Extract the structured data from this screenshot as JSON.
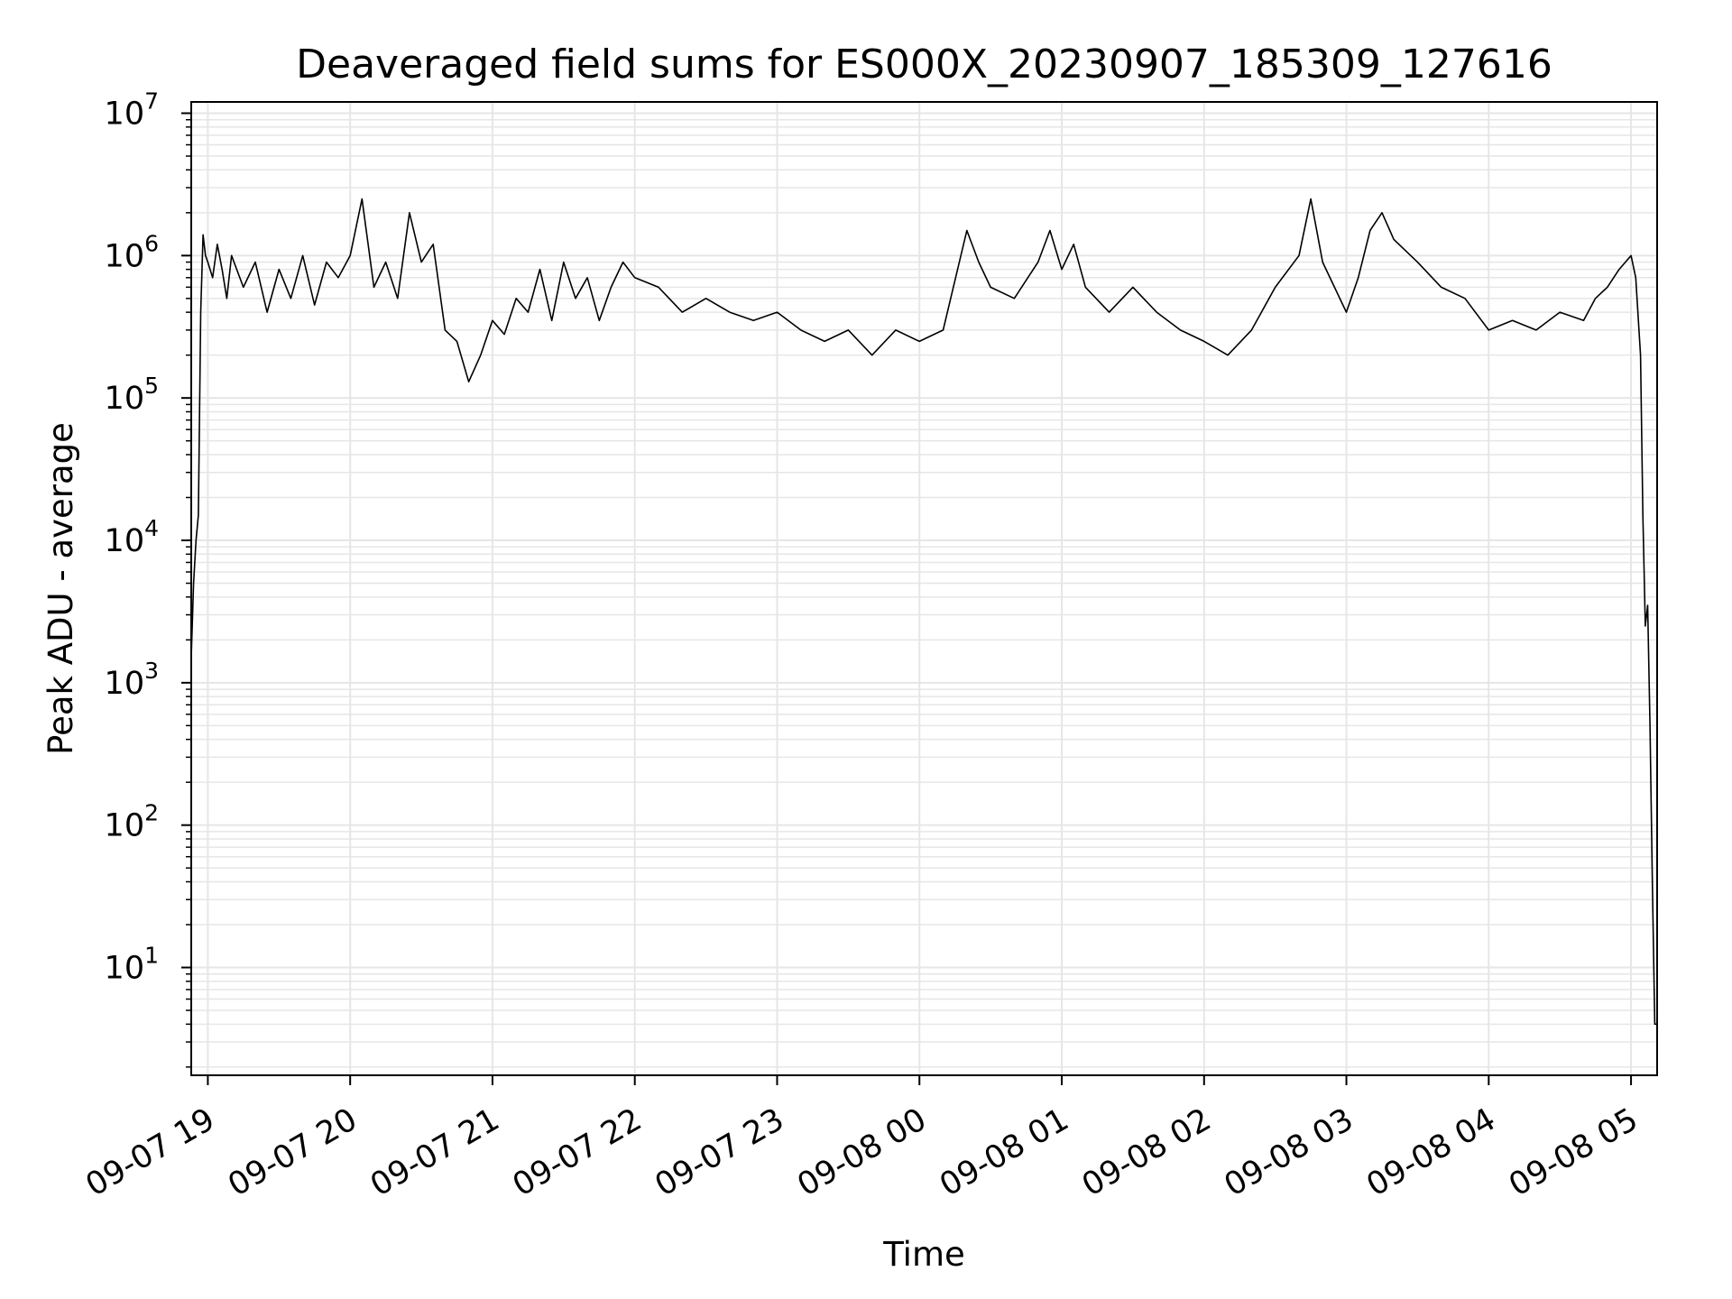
{
  "chart_data": {
    "type": "line",
    "title": "Deaveraged field sums for ES000X_20230907_185309_127616",
    "xlabel": "Time",
    "ylabel": "Peak ADU - average",
    "y_scale": "log",
    "ylim": [
      1.75,
      12000000
    ],
    "xlim": [
      "2023-09-07 18:53",
      "2023-09-08 05:11"
    ],
    "grid": true,
    "grid_minor": true,
    "legend": "none",
    "line_color": "#000000",
    "grid_color": "#e6e6e6",
    "x_ticks": [
      {
        "value": "2023-09-07 19:00",
        "label": "09-07 19"
      },
      {
        "value": "2023-09-07 20:00",
        "label": "09-07 20"
      },
      {
        "value": "2023-09-07 21:00",
        "label": "09-07 21"
      },
      {
        "value": "2023-09-07 22:00",
        "label": "09-07 22"
      },
      {
        "value": "2023-09-07 23:00",
        "label": "09-07 23"
      },
      {
        "value": "2023-09-08 00:00",
        "label": "09-08 00"
      },
      {
        "value": "2023-09-08 01:00",
        "label": "09-08 01"
      },
      {
        "value": "2023-09-08 02:00",
        "label": "09-08 02"
      },
      {
        "value": "2023-09-08 03:00",
        "label": "09-08 03"
      },
      {
        "value": "2023-09-08 04:00",
        "label": "09-08 04"
      },
      {
        "value": "2023-09-08 05:00",
        "label": "09-08 05"
      }
    ],
    "y_ticks": [
      {
        "value": 10,
        "base": "10",
        "exp": "1"
      },
      {
        "value": 100,
        "base": "10",
        "exp": "2"
      },
      {
        "value": 1000,
        "base": "10",
        "exp": "3"
      },
      {
        "value": 10000,
        "base": "10",
        "exp": "4"
      },
      {
        "value": 100000,
        "base": "10",
        "exp": "5"
      },
      {
        "value": 1000000,
        "base": "10",
        "exp": "6"
      },
      {
        "value": 10000000,
        "base": "10",
        "exp": "7"
      }
    ],
    "series": [
      {
        "x": [
          "2023-09-07 18:53",
          "2023-09-07 18:54",
          "2023-09-07 18:55",
          "2023-09-07 18:56",
          "2023-09-07 18:57",
          "2023-09-07 18:58",
          "2023-09-07 18:59",
          "2023-09-07 19:00",
          "2023-09-07 19:02",
          "2023-09-07 19:04",
          "2023-09-07 19:06",
          "2023-09-07 19:08",
          "2023-09-07 19:10",
          "2023-09-07 19:15",
          "2023-09-07 19:20",
          "2023-09-07 19:25",
          "2023-09-07 19:30",
          "2023-09-07 19:35",
          "2023-09-07 19:40",
          "2023-09-07 19:45",
          "2023-09-07 19:50",
          "2023-09-07 19:55",
          "2023-09-07 20:00",
          "2023-09-07 20:05",
          "2023-09-07 20:10",
          "2023-09-07 20:15",
          "2023-09-07 20:20",
          "2023-09-07 20:25",
          "2023-09-07 20:30",
          "2023-09-07 20:35",
          "2023-09-07 20:40",
          "2023-09-07 20:45",
          "2023-09-07 20:50",
          "2023-09-07 20:55",
          "2023-09-07 21:00",
          "2023-09-07 21:05",
          "2023-09-07 21:10",
          "2023-09-07 21:15",
          "2023-09-07 21:20",
          "2023-09-07 21:25",
          "2023-09-07 21:30",
          "2023-09-07 21:35",
          "2023-09-07 21:40",
          "2023-09-07 21:45",
          "2023-09-07 21:50",
          "2023-09-07 21:55",
          "2023-09-07 22:00",
          "2023-09-07 22:10",
          "2023-09-07 22:20",
          "2023-09-07 22:30",
          "2023-09-07 22:40",
          "2023-09-07 22:50",
          "2023-09-07 23:00",
          "2023-09-07 23:10",
          "2023-09-07 23:20",
          "2023-09-07 23:30",
          "2023-09-07 23:40",
          "2023-09-07 23:50",
          "2023-09-08 00:00",
          "2023-09-08 00:10",
          "2023-09-08 00:20",
          "2023-09-08 00:25",
          "2023-09-08 00:30",
          "2023-09-08 00:40",
          "2023-09-08 00:50",
          "2023-09-08 00:55",
          "2023-09-08 01:00",
          "2023-09-08 01:05",
          "2023-09-08 01:10",
          "2023-09-08 01:20",
          "2023-09-08 01:30",
          "2023-09-08 01:40",
          "2023-09-08 01:50",
          "2023-09-08 02:00",
          "2023-09-08 02:10",
          "2023-09-08 02:20",
          "2023-09-08 02:30",
          "2023-09-08 02:40",
          "2023-09-08 02:45",
          "2023-09-08 02:50",
          "2023-09-08 03:00",
          "2023-09-08 03:05",
          "2023-09-08 03:10",
          "2023-09-08 03:15",
          "2023-09-08 03:20",
          "2023-09-08 03:30",
          "2023-09-08 03:40",
          "2023-09-08 03:50",
          "2023-09-08 04:00",
          "2023-09-08 04:10",
          "2023-09-08 04:20",
          "2023-09-08 04:30",
          "2023-09-08 04:40",
          "2023-09-08 04:45",
          "2023-09-08 04:50",
          "2023-09-08 04:55",
          "2023-09-08 05:00",
          "2023-09-08 05:02",
          "2023-09-08 05:04",
          "2023-09-08 05:05",
          "2023-09-08 05:06",
          "2023-09-08 05:07",
          "2023-09-08 05:08",
          "2023-09-08 05:09",
          "2023-09-08 05:10",
          "2023-09-08 05:11"
        ],
        "y": [
          1500,
          5000,
          10000,
          15000,
          400000,
          1400000,
          1000000,
          900000,
          700000,
          1200000,
          800000,
          500000,
          1000000,
          600000,
          900000,
          400000,
          800000,
          500000,
          1000000,
          450000,
          900000,
          700000,
          1000000,
          2500000,
          600000,
          900000,
          500000,
          2000000,
          900000,
          1200000,
          300000,
          250000,
          130000,
          200000,
          350000,
          280000,
          500000,
          400000,
          800000,
          350000,
          900000,
          500000,
          700000,
          350000,
          600000,
          900000,
          700000,
          600000,
          400000,
          500000,
          400000,
          350000,
          400000,
          300000,
          250000,
          300000,
          200000,
          300000,
          250000,
          300000,
          1500000,
          900000,
          600000,
          500000,
          900000,
          1500000,
          800000,
          1200000,
          600000,
          400000,
          600000,
          400000,
          300000,
          250000,
          200000,
          300000,
          600000,
          1000000,
          2500000,
          900000,
          400000,
          700000,
          1500000,
          2000000,
          1300000,
          900000,
          600000,
          500000,
          300000,
          350000,
          300000,
          400000,
          350000,
          500000,
          600000,
          800000,
          1000000,
          700000,
          200000,
          15000,
          2500,
          3500,
          500,
          40,
          4,
          4
        ]
      }
    ]
  }
}
